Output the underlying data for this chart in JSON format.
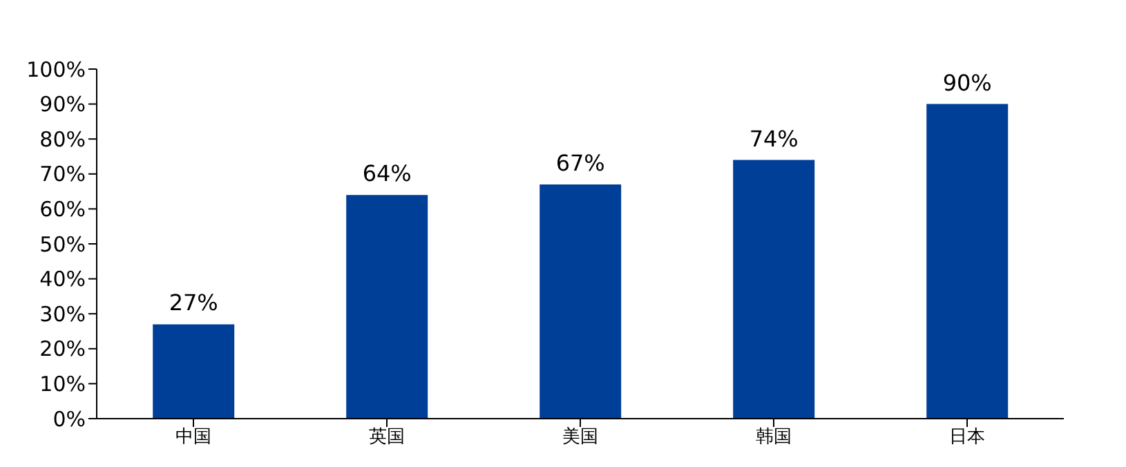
{
  "chart_data": {
    "type": "bar",
    "categories": [
      "中国",
      "英国",
      "美国",
      "韩国",
      "日本"
    ],
    "values": [
      27,
      64,
      67,
      74,
      90
    ],
    "color": "#003f98",
    "value_labels": [
      "27%",
      "64%",
      "67%",
      "74%",
      "90%"
    ],
    "ylim": [
      0,
      100
    ],
    "yticks": [
      {
        "value": 0,
        "label": "0%"
      },
      {
        "value": 10,
        "label": "10%"
      },
      {
        "value": 20,
        "label": "20%"
      },
      {
        "value": 30,
        "label": "30%"
      },
      {
        "value": 40,
        "label": "40%"
      },
      {
        "value": 50,
        "label": "50%"
      },
      {
        "value": 60,
        "label": "60%"
      },
      {
        "value": 70,
        "label": "70%"
      },
      {
        "value": 80,
        "label": "80%"
      },
      {
        "value": 90,
        "label": "90%"
      },
      {
        "value": 100,
        "label": "100%"
      }
    ],
    "grid": false,
    "legend": false
  }
}
